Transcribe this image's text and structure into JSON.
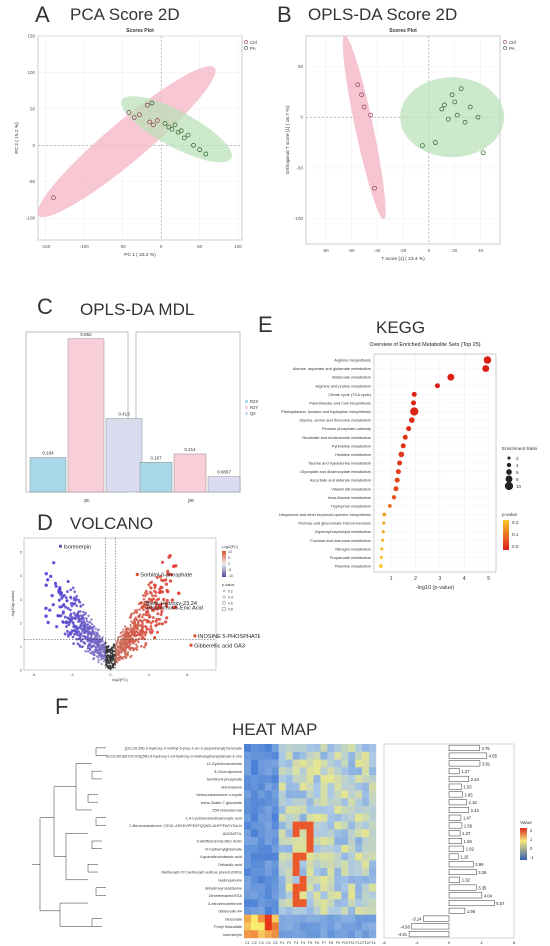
{
  "panels": {
    "a": {
      "letter": "A",
      "title": "PCA Score 2D"
    },
    "b": {
      "letter": "B",
      "title": "OPLS-DA Score 2D"
    },
    "c": {
      "letter": "C",
      "title": "OPLS-DA MDL"
    },
    "d": {
      "letter": "D",
      "title": "VOLCANO"
    },
    "e": {
      "letter": "E",
      "title": "KEGG"
    },
    "f": {
      "letter": "F",
      "title": "HEAT MAP"
    }
  },
  "colors": {
    "ctrl": "#f4b6c6",
    "ctrl_dark": "#d97a98",
    "pa": "#b8dfb5",
    "pa_dark": "#5f9a5a",
    "bar_r2x": "#a9d8e8",
    "bar_r2y": "#f8cfd8",
    "bar_q2": "#d9dcef"
  },
  "chart_data": [
    {
      "type": "scatter",
      "title": "Scores Plot",
      "xlabel": "PC 1 ( 23.2 %)",
      "ylabel": "PC 2 ( 15.2 %)",
      "xlim": [
        -160,
        105
      ],
      "ylim": [
        -130,
        150
      ],
      "xticks": [
        -150,
        -100,
        -50,
        0,
        50,
        100
      ],
      "yticks": [
        -100,
        -50,
        0,
        50,
        100,
        150
      ],
      "legend": [
        "Ctrl",
        "PA"
      ],
      "series": [
        {
          "name": "Ctrl",
          "points": [
            [
              -140,
              -72
            ],
            [
              -42,
              45
            ],
            [
              -35,
              38
            ],
            [
              -28,
              42
            ],
            [
              -18,
              55
            ],
            [
              -15,
              32
            ],
            [
              -10,
              28
            ],
            [
              -5,
              34
            ]
          ]
        },
        {
          "name": "PA",
          "points": [
            [
              -12,
              58
            ],
            [
              5,
              30
            ],
            [
              10,
              25
            ],
            [
              14,
              22
            ],
            [
              18,
              28
            ],
            [
              22,
              18
            ],
            [
              26,
              20
            ],
            [
              30,
              10
            ],
            [
              35,
              14
            ],
            [
              42,
              0
            ],
            [
              50,
              -6
            ],
            [
              58,
              -12
            ]
          ]
        }
      ]
    },
    {
      "type": "scatter",
      "title": "Scores Plot",
      "xlabel": "T score [1] ( 23.4 %)",
      "ylabel": "Orthogonal T score [1] ( 16.7 %)",
      "xlim": [
        -95,
        55
      ],
      "ylim": [
        -125,
        80
      ],
      "xticks": [
        -80,
        -60,
        -40,
        -20,
        0,
        20,
        40
      ],
      "yticks": [
        -100,
        -50,
        0,
        50
      ],
      "legend": [
        "Ctrl",
        "PA"
      ],
      "series": [
        {
          "name": "Ctrl",
          "points": [
            [
              -55,
              32
            ],
            [
              -52,
              22
            ],
            [
              -50,
              10
            ],
            [
              -45,
              2
            ],
            [
              -42,
              -70
            ]
          ]
        },
        {
          "name": "PA",
          "points": [
            [
              -5,
              -28
            ],
            [
              5,
              -25
            ],
            [
              10,
              8
            ],
            [
              12,
              12
            ],
            [
              15,
              -2
            ],
            [
              18,
              22
            ],
            [
              20,
              15
            ],
            [
              22,
              2
            ],
            [
              25,
              28
            ],
            [
              28,
              -5
            ],
            [
              32,
              10
            ],
            [
              38,
              0
            ],
            [
              42,
              -35
            ]
          ]
        }
      ]
    },
    {
      "type": "bar",
      "categories": [
        "pc",
        "pe"
      ],
      "series": [
        {
          "name": "R2X",
          "values": [
            0.194,
            0.167
          ]
        },
        {
          "name": "R2Y",
          "values": [
            0.862,
            0.214
          ]
        },
        {
          "name": "Q2",
          "values": [
            0.413,
            0.0867
          ]
        }
      ],
      "value_labels": [
        [
          "0.194",
          "0.862",
          "0.413"
        ],
        [
          "0.167",
          "0.214",
          "0.0867"
        ]
      ],
      "ylim": [
        0,
        0.9
      ],
      "legend": [
        "R2X",
        "R2Y",
        "Q2"
      ]
    },
    {
      "type": "scatter",
      "xlabel": "log2(FC)",
      "ylabel": "-log10(p-value)",
      "xlim": [
        -9,
        11
      ],
      "ylim": [
        0,
        5.6
      ],
      "xticks": [
        -8,
        -4,
        0,
        4,
        8
      ],
      "yticks": [
        0,
        1,
        2,
        3,
        4,
        5
      ],
      "legend_title_color": "Log2(FC)",
      "color_ticks": [
        "10",
        "5",
        "0",
        "-5",
        "-10"
      ],
      "legend_title_size": "p-value",
      "size_ticks": [
        "0.2",
        "0.4",
        "0.6",
        "0.8"
      ],
      "labeled_points": [
        {
          "label": "Isoreserpin",
          "x": -5.2,
          "y": 5.25
        },
        {
          "label": "Sorbitol-6-phosphate",
          "x": 2.8,
          "y": 4.05
        },
        {
          "label": "3Beta-Hydroxy-23,24",
          "x": 3.2,
          "y": 2.85
        },
        {
          "label": "-Bisnorchol-5-Enic Acid",
          "x": 3.3,
          "y": 2.65
        },
        {
          "label": "INOSINE 5-PHOSPHATE",
          "x": 8.8,
          "y": 1.45
        },
        {
          "label": "Gibberellic acid GA3",
          "x": 8.4,
          "y": 1.05
        }
      ]
    },
    {
      "type": "scatter",
      "title": "Overview of Enriched Metabolite Sets (Top 25)",
      "xlabel": "-log10 (p-value)",
      "xlim": [
        0.3,
        5.3
      ],
      "xticks": [
        1,
        2,
        3,
        4,
        5
      ],
      "size_legend_title": "Enrichment Ratio",
      "size_legend": [
        "2",
        "4",
        "6",
        "8",
        "10"
      ],
      "color_legend_title": "p-value",
      "color_legend": [
        "0.2",
        "0.1",
        "0.0"
      ],
      "categories": [
        "Arginine biosynthesis",
        "Alanine, aspartate and glutamate metabolism",
        "Butanoate metabolism",
        "Arginine and proline metabolism",
        "Citrate cycle (TCA cycle)",
        "Pantothenate and CoA biosynthesis",
        "Phenylalanine, tyrosine and tryptophan biosynthesis",
        "Glycine, serine and threonine metabolism",
        "Pentose phosphate pathway",
        "Nicotinate and nicotinamide metabolism",
        "Pyrimidine metabolism",
        "Histidine metabolism",
        "Taurine and hypotaurine metabolism",
        "Glyoxylate and dicarboxylate metabolism",
        "Ascorbate and aldarate metabolism",
        "Vitamin B6 metabolism",
        "beta-Alanine metabolism",
        "Tryptophan metabolism",
        "Ubiquinone and other terpenoid-quinone biosynthesis",
        "Pentose and glucuronate interconversions",
        "Glycerophospholipid metabolism",
        "Fructose and mannose metabolism",
        "Nitrogen metabolism",
        "Propanoate metabolism",
        "Thiamine metabolism"
      ],
      "x": [
        4.95,
        4.88,
        3.45,
        2.9,
        1.95,
        1.92,
        1.95,
        1.85,
        1.72,
        1.58,
        1.5,
        1.42,
        1.35,
        1.3,
        1.25,
        1.2,
        1.12,
        0.95,
        0.72,
        0.7,
        0.68,
        0.65,
        0.62,
        0.6,
        0.58
      ],
      "ratio": [
        9,
        8,
        8,
        5,
        5,
        5,
        10,
        6,
        5,
        5,
        5,
        6,
        5,
        5,
        5,
        5,
        4,
        3,
        3,
        2,
        2,
        2,
        2,
        2,
        3
      ],
      "pvalue": [
        0.0,
        0.0,
        0.0,
        0.0,
        0.01,
        0.01,
        0.01,
        0.02,
        0.02,
        0.03,
        0.03,
        0.04,
        0.04,
        0.05,
        0.06,
        0.06,
        0.08,
        0.11,
        0.19,
        0.2,
        0.21,
        0.22,
        0.24,
        0.25,
        0.26
      ]
    },
    {
      "type": "heatmap",
      "rows": [
        "[(1S,2S,5R)-2-hydroxy-2-methyl-5-prop-1-en-2-ylcyclohexyl] benzoate",
        "NCGC00166702-02![(5R)-5-hydroxy-1-(4-hydroxy-3-methoxyphenyl)decan-3-one",
        "12-Cyclohexanamide",
        "3-Chlorotyrosine",
        "Sorbitol-6-phosphate",
        "skimmianine",
        "heliocurassavicine n-oxyde",
        "trans-Zeatin-7-glucoside",
        "25R inokosterone",
        "1,4-Cyclohexanedicarboxylic acid",
        "2-Benzoxazolinone; CE10; ASSKVPFEZFQQNO-UHFFFAOYSA-N",
        "ADONITOL",
        "5-AMINOLEVULINIC ACID",
        "N-Carbamylglutamate",
        "4-guanidinobutanoic acid",
        "Orthanilic acid",
        "Methocarb-TP methocarb sulfone phenol (MSS)",
        "Hydroquinone",
        "dehydroxyrocastanine",
        "Dimethenamid ESA",
        "3-nitrobenzanthrone",
        "Gibberellin A4",
        "Gluconate",
        "Prolyl thiosulfate",
        "Isoreserpin"
      ],
      "columns": [
        "C1",
        "C2",
        "C3",
        "C4",
        "C5",
        "F1",
        "F2",
        "F3",
        "F4",
        "F5",
        "F6",
        "F7",
        "F8",
        "F9",
        "F10",
        "F11",
        "F12",
        "F13",
        "F14"
      ],
      "bar_values": [
        3.75,
        4.65,
        3.81,
        1.27,
        2.43,
        1.53,
        1.65,
        2.16,
        2.42,
        1.47,
        1.59,
        1.37,
        1.56,
        1.82,
        1.15,
        2.99,
        3.36,
        1.32,
        3.35,
        4.04,
        5.57,
        1.96,
        -3.14,
        -4.58,
        -4.91
      ],
      "bar_labels": [
        "3.75",
        "4.65",
        "3.81",
        "1.27",
        "2.43",
        "1.53",
        "1.65",
        "2.16",
        "2.42",
        "1.47",
        "1.59",
        "1.37",
        "1.56",
        "1.82",
        "1.15",
        "2.99",
        "3.36",
        "1.32",
        "3.35",
        "4.04",
        "5.57",
        "1.96",
        "-3.14",
        "-4.58",
        "-4.91"
      ],
      "bar_xticks": [
        "-8",
        "-4",
        "0",
        "4",
        "8"
      ],
      "legend_title": "Value",
      "legend_ticks": [
        "2",
        "1",
        "0",
        "-1"
      ]
    }
  ]
}
